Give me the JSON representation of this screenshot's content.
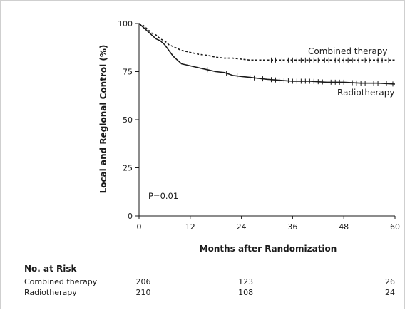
{
  "chart_data": {
    "type": "line",
    "title": "",
    "xlabel": "Months after Randomization",
    "ylabel": "Local and Regional Control (%)",
    "xlim": [
      0,
      60
    ],
    "ylim": [
      0,
      100
    ],
    "xticks": [
      0,
      12,
      24,
      36,
      48,
      60
    ],
    "yticks": [
      0,
      25,
      50,
      75,
      100
    ],
    "grid": false,
    "annotation": "P=0.01",
    "series": [
      {
        "name": "Combined therapy",
        "style": "dashed",
        "color": "#1a1a1a",
        "x": [
          0,
          1,
          2,
          3,
          4,
          5,
          6,
          7,
          8,
          9,
          10,
          12,
          14,
          16,
          18,
          20,
          22,
          24,
          26,
          28,
          30,
          33,
          36,
          40,
          44,
          48,
          52,
          56,
          60
        ],
        "y": [
          100,
          99,
          97,
          95,
          94,
          92,
          91,
          89,
          88,
          87,
          86,
          85,
          84,
          83.5,
          82.5,
          82,
          82,
          81.5,
          81,
          81,
          81,
          81,
          81,
          81,
          81,
          81,
          81,
          81,
          81
        ],
        "censor_x": [
          31,
          32,
          33.5,
          35,
          36,
          37,
          38,
          39,
          40,
          41,
          42,
          43.5,
          44.5,
          46,
          47,
          48,
          49,
          50,
          51.5,
          53,
          54,
          56,
          57,
          58.5
        ]
      },
      {
        "name": "Radiotherapy",
        "style": "solid",
        "color": "#1a1a1a",
        "x": [
          0,
          1,
          2,
          3,
          4,
          5,
          6,
          7,
          8,
          9,
          10,
          11,
          12,
          14,
          16,
          18,
          20,
          22,
          24,
          26,
          28,
          30,
          33,
          36,
          40,
          44,
          48,
          52,
          56,
          60
        ],
        "y": [
          100,
          98,
          96,
          94,
          92,
          91,
          89,
          86,
          83,
          81,
          79,
          78.5,
          78,
          77,
          76,
          75,
          74.5,
          73,
          72.5,
          72,
          71.5,
          71,
          70.5,
          70,
          70,
          69.5,
          69.5,
          69,
          69,
          68.5
        ],
        "censor_x": [
          16,
          20.5,
          23,
          26,
          27,
          29,
          30,
          31,
          32,
          33,
          34,
          35,
          36,
          37,
          38,
          39,
          40,
          41,
          42,
          43,
          45,
          46,
          47,
          48,
          50,
          51,
          52,
          53,
          55,
          56,
          58,
          59.5
        ]
      }
    ]
  },
  "risk_table": {
    "title": "No. at Risk",
    "rows": [
      {
        "label": "Combined therapy",
        "values": [
          "206",
          "123",
          "26"
        ]
      },
      {
        "label": "Radiotherapy",
        "values": [
          "210",
          "108",
          "24"
        ]
      }
    ],
    "at_months": [
      0,
      24,
      60
    ]
  }
}
